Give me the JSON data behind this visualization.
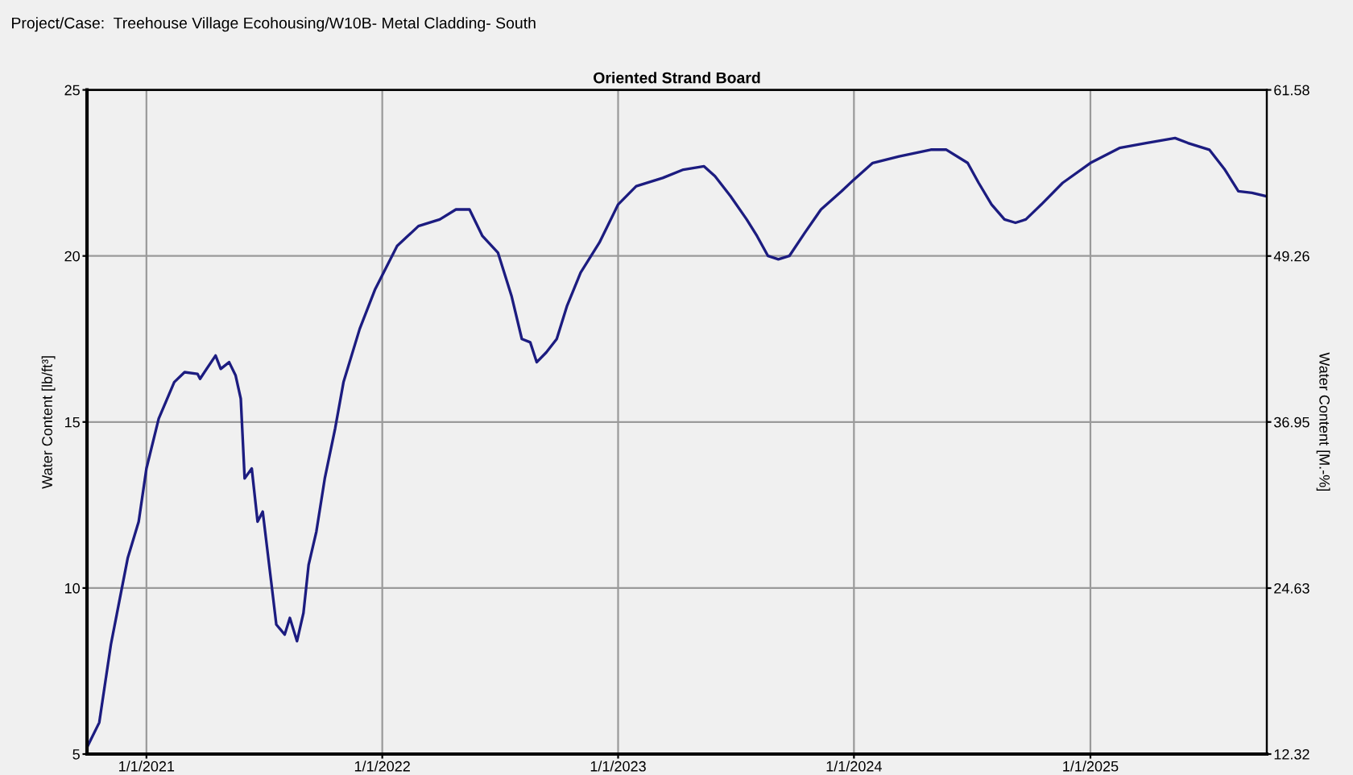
{
  "chart_data": {
    "type": "line",
    "title": "Oriented Strand Board",
    "annotations": [
      "Project/Case:  Treehouse Village Ecohousing/W10B- Metal Cladding- South"
    ],
    "ylabel": "Water Content [lb/ft³]",
    "y2label": "Water Content [M.-%]",
    "x": [
      "2020-10-01",
      "2020-10-20",
      "2020-11-07",
      "2020-11-20",
      "2020-12-03",
      "2020-12-20",
      "2021-01-01",
      "2021-01-20",
      "2021-02-13",
      "2021-03-01",
      "2021-03-21",
      "2021-03-25",
      "2021-04-18",
      "2021-04-26",
      "2021-05-09",
      "2021-05-19",
      "2021-05-27",
      "2021-06-02",
      "2021-06-13",
      "2021-06-22",
      "2021-06-30",
      "2021-07-13",
      "2021-07-21",
      "2021-08-03",
      "2021-08-11",
      "2021-08-22",
      "2021-09-01",
      "2021-09-09",
      "2021-09-21",
      "2021-10-04",
      "2021-10-20",
      "2021-11-02",
      "2021-11-27",
      "2021-12-21",
      "2022-01-24",
      "2022-02-26",
      "2022-03-31",
      "2022-04-25",
      "2022-05-16",
      "2022-06-05",
      "2022-06-29",
      "2022-07-20",
      "2022-08-05",
      "2022-08-18",
      "2022-08-28",
      "2022-09-12",
      "2022-09-28",
      "2022-10-14",
      "2022-11-04",
      "2022-12-03",
      "2023-01-01",
      "2023-01-29",
      "2023-03-11",
      "2023-04-12",
      "2023-05-14",
      "2023-05-31",
      "2023-06-24",
      "2023-07-19",
      "2023-08-04",
      "2023-08-21",
      "2023-09-06",
      "2023-09-23",
      "2023-10-17",
      "2023-11-11",
      "2023-12-13",
      "2024-01-01",
      "2024-01-30",
      "2024-03-11",
      "2024-04-29",
      "2024-05-23",
      "2024-06-25",
      "2024-07-12",
      "2024-08-01",
      "2024-08-21",
      "2024-09-07",
      "2024-09-23",
      "2024-10-17",
      "2024-11-19",
      "2025-01-01",
      "2025-02-15",
      "2025-03-28",
      "2025-05-12",
      "2025-06-01",
      "2025-07-04",
      "2025-07-28",
      "2025-08-18",
      "2025-09-08",
      "2025-09-30"
    ],
    "series": [
      {
        "color": "#1c1c80",
        "values": [
          5.2,
          5.95,
          8.3,
          9.6,
          10.9,
          12.0,
          13.6,
          15.1,
          16.2,
          16.5,
          16.45,
          16.3,
          17.0,
          16.6,
          16.8,
          16.4,
          15.7,
          13.3,
          13.6,
          12.0,
          12.3,
          10.2,
          8.9,
          8.6,
          9.1,
          8.4,
          9.25,
          10.7,
          11.7,
          13.3,
          14.8,
          16.2,
          17.8,
          19.0,
          20.3,
          20.9,
          21.1,
          21.4,
          21.4,
          20.6,
          20.1,
          18.8,
          17.5,
          17.4,
          16.8,
          17.1,
          17.5,
          18.5,
          19.5,
          20.4,
          21.55,
          22.1,
          22.35,
          22.6,
          22.7,
          22.4,
          21.8,
          21.1,
          20.6,
          20.0,
          19.9,
          20.0,
          20.7,
          21.4,
          21.95,
          22.3,
          22.8,
          23.0,
          23.2,
          23.2,
          22.8,
          22.2,
          21.55,
          21.1,
          21.0,
          21.1,
          21.55,
          22.2,
          22.8,
          23.25,
          23.4,
          23.55,
          23.4,
          23.2,
          22.6,
          21.95,
          21.9,
          21.8
        ]
      }
    ],
    "xlim": [
      "2020-10-01",
      "2025-10-01"
    ],
    "xticks": [
      {
        "value": "2021-01-01",
        "label": "1/1/2021"
      },
      {
        "value": "2022-01-01",
        "label": "1/1/2022"
      },
      {
        "value": "2023-01-01",
        "label": "1/1/2023"
      },
      {
        "value": "2024-01-01",
        "label": "1/1/2024"
      },
      {
        "value": "2025-01-01",
        "label": "1/1/2025"
      }
    ],
    "ylim": [
      5,
      25
    ],
    "yticks": [
      5,
      10,
      15,
      20,
      25
    ],
    "y2lim": [
      12.32,
      61.58
    ],
    "y2ticks": [
      12.32,
      24.63,
      36.95,
      49.26,
      61.58
    ],
    "grid": true,
    "legend": false,
    "line_style": "solid",
    "marker": "none"
  }
}
